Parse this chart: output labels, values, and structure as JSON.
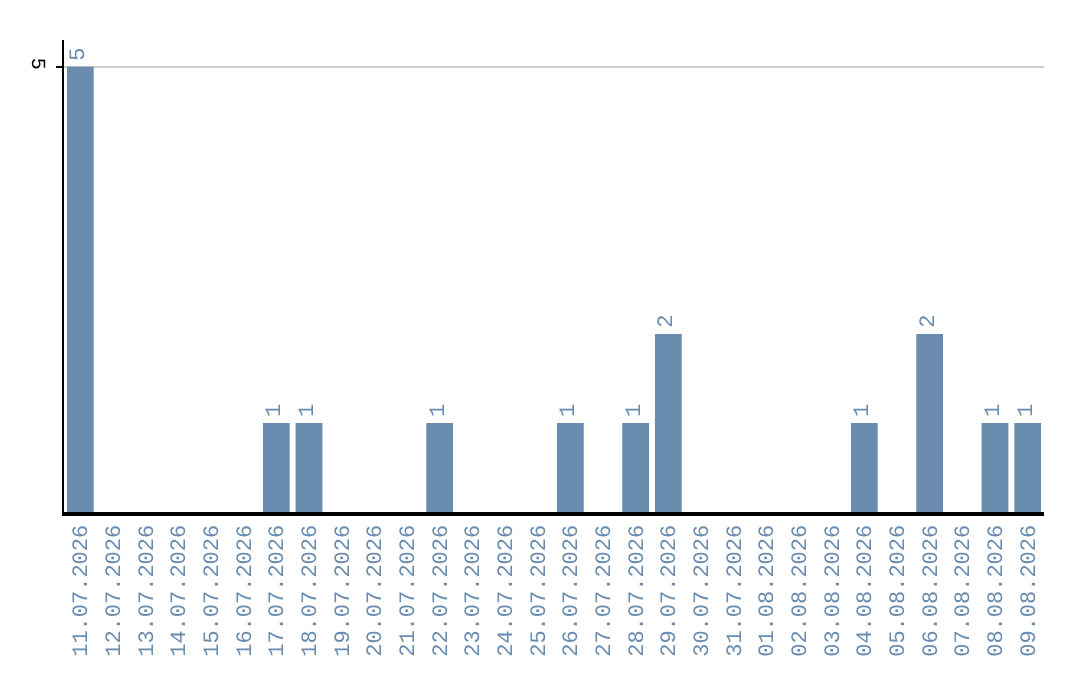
{
  "chart_data": {
    "type": "bar",
    "categories": [
      "11.07.2026",
      "12.07.2026",
      "13.07.2026",
      "14.07.2026",
      "15.07.2026",
      "16.07.2026",
      "17.07.2026",
      "18.07.2026",
      "19.07.2026",
      "20.07.2026",
      "21.07.2026",
      "22.07.2026",
      "23.07.2026",
      "24.07.2026",
      "25.07.2026",
      "26.07.2026",
      "27.07.2026",
      "28.07.2026",
      "29.07.2026",
      "30.07.2026",
      "31.07.2026",
      "01.08.2026",
      "02.08.2026",
      "03.08.2026",
      "04.08.2026",
      "05.08.2026",
      "06.08.2026",
      "07.08.2026",
      "08.08.2026",
      "09.08.2026"
    ],
    "values": [
      5,
      0,
      0,
      0,
      0,
      0,
      1,
      1,
      0,
      0,
      0,
      1,
      0,
      0,
      0,
      1,
      0,
      1,
      2,
      0,
      0,
      0,
      0,
      0,
      1,
      0,
      2,
      0,
      1,
      1
    ],
    "value_labels": [
      "5",
      null,
      null,
      null,
      null,
      null,
      "1",
      "1",
      null,
      null,
      null,
      "1",
      null,
      null,
      null,
      "1",
      null,
      "1",
      "2",
      null,
      null,
      null,
      null,
      null,
      "1",
      null,
      "2",
      null,
      "1",
      "1"
    ],
    "color": "#6a8caf",
    "ylim": [
      0,
      5.3
    ],
    "yticks": [
      5
    ],
    "grid": "y",
    "legend": false
  }
}
